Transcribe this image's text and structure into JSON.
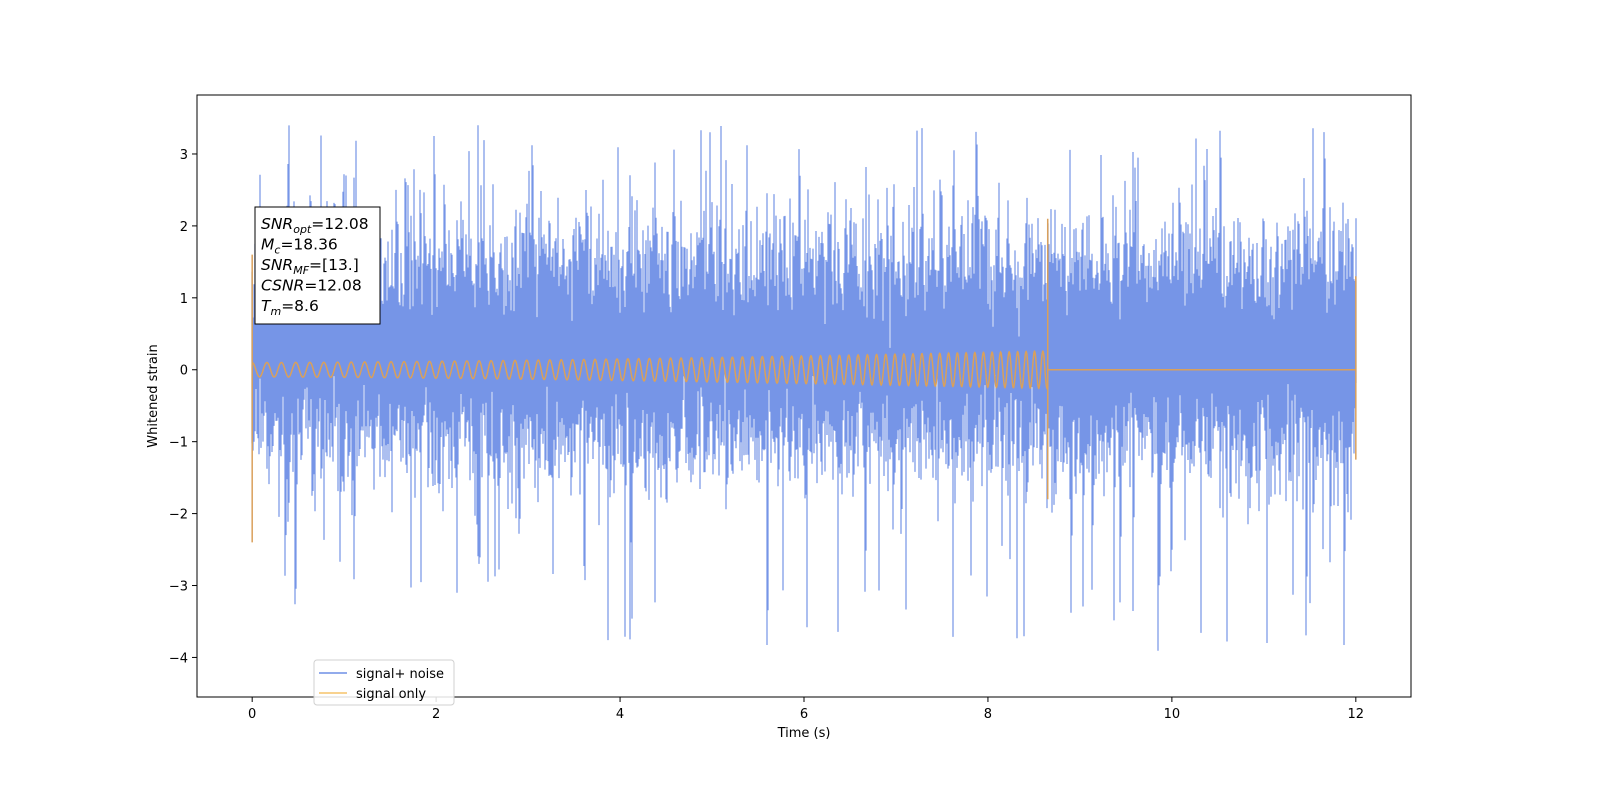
{
  "chart_data": {
    "type": "line",
    "xlabel": "Time (s)",
    "ylabel": "Whitened strain",
    "xlim": [
      -0.6,
      12.6
    ],
    "ylim": [
      -4.55,
      3.82
    ],
    "x_ticks": [
      0,
      2,
      4,
      6,
      8,
      10,
      12
    ],
    "y_ticks": [
      -4,
      -3,
      -2,
      -1,
      0,
      1,
      2,
      3
    ],
    "grid": false,
    "legend_position": "lower-left",
    "series": [
      {
        "name": "signal+ noise",
        "color": "#6f8fe6",
        "description_of_values": "whitened noisy strain, dense, roughly within [-4.1, 3.45]",
        "x_range": [
          0,
          12
        ],
        "sample_rate_hint": 1500
      },
      {
        "name": "signal only",
        "color": "#f5b041",
        "description_of_values": "chirp oscillation amplitude rising from ~0.1 to ~0.26 until merger at ~8.65 s, zero afterwards",
        "x_range": [
          0,
          12
        ],
        "merger_time": 8.65,
        "amplitude_start": 0.1,
        "amplitude_end": 0.26
      }
    ],
    "annotation": {
      "lines": [
        {
          "base": "SNR",
          "sub": "opt",
          "value": "=12.08"
        },
        {
          "base": "M",
          "sub": "c",
          "value": "=18.36"
        },
        {
          "base": "SNR",
          "sub": "MF",
          "value": "=[13.]"
        },
        {
          "base": "CSNR",
          "sub": "",
          "value": "=12.08"
        },
        {
          "base": "T",
          "sub": "m",
          "value": "=8.6"
        }
      ]
    }
  }
}
